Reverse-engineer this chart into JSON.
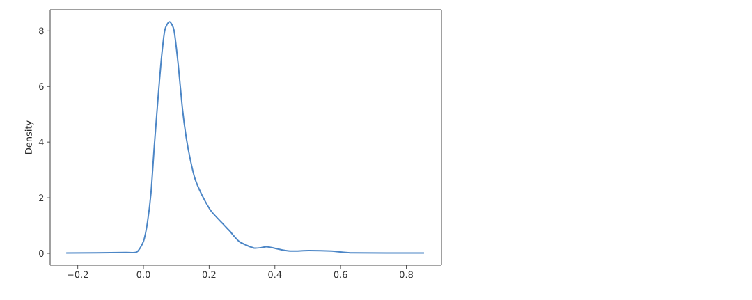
{
  "chart_data": {
    "type": "line",
    "ylabel": "Density",
    "color": "#4c86c6",
    "x": [
      -0.235,
      -0.055,
      -0.02,
      0.0,
      0.012,
      0.023,
      0.033,
      0.044,
      0.054,
      0.065,
      0.079,
      0.093,
      0.106,
      0.118,
      0.13,
      0.143,
      0.157,
      0.178,
      0.206,
      0.242,
      0.263,
      0.277,
      0.291,
      0.312,
      0.337,
      0.355,
      0.376,
      0.404,
      0.446,
      0.503,
      0.573,
      0.63,
      0.854
    ],
    "values": [
      0.01,
      0.03,
      0.05,
      0.43,
      1.1,
      2.18,
      3.85,
      5.52,
      6.93,
      8.02,
      8.33,
      8.02,
      6.77,
      5.27,
      4.18,
      3.35,
      2.68,
      2.1,
      1.52,
      1.06,
      0.8,
      0.6,
      0.43,
      0.3,
      0.19,
      0.2,
      0.24,
      0.17,
      0.08,
      0.1,
      0.08,
      0.02,
      0.01
    ],
    "xlim": [
      -0.284,
      0.907
    ],
    "ylim": [
      -0.425,
      8.76
    ],
    "xticks": [
      {
        "value": -0.2,
        "label": "−0.2"
      },
      {
        "value": 0.0,
        "label": "0.0"
      },
      {
        "value": 0.2,
        "label": "0.2"
      },
      {
        "value": 0.4,
        "label": "0.4"
      },
      {
        "value": 0.6,
        "label": "0.6"
      },
      {
        "value": 0.8,
        "label": "0.8"
      }
    ],
    "yticks": [
      0,
      2,
      4,
      6,
      8
    ]
  }
}
